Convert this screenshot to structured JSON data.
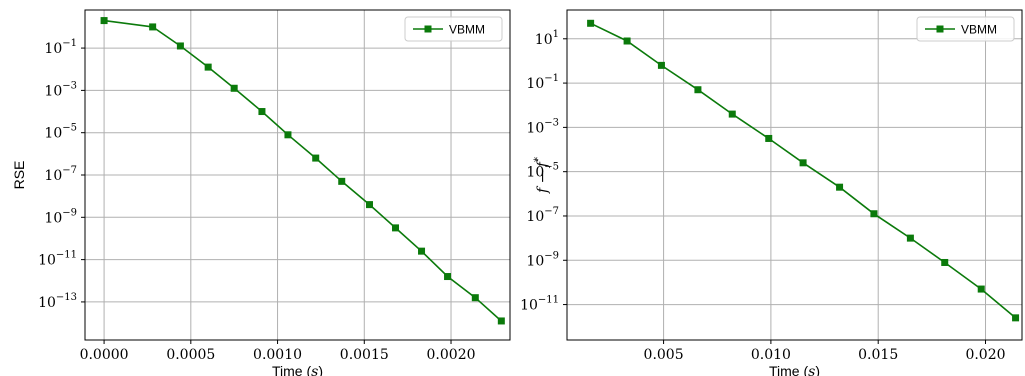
{
  "colors": {
    "series": "#0b7a0b",
    "grid": "#b0b0b0",
    "axis": "#000000"
  },
  "chart_data": [
    {
      "type": "line",
      "scale_y": "log",
      "grid": true,
      "legend_position": "top-right",
      "xlabel": "Time",
      "xlabel_unit": "s",
      "ylabel": "RSE",
      "ylabel_italic": false,
      "xlim": [
        -0.00011,
        0.00234
      ],
      "ylog_range": [
        -14.8,
        0.8
      ],
      "xticks": [
        0.0,
        0.0005,
        0.001,
        0.0015,
        0.002
      ],
      "xtick_labels": [
        "0.0000",
        "0.0005",
        "0.0010",
        "0.0015",
        "0.0020"
      ],
      "ytick_exponents": [
        -1,
        -3,
        -5,
        -7,
        -9,
        -11,
        -13
      ],
      "ytick_base": "10",
      "series": [
        {
          "name": "VBMM",
          "marker": "square",
          "x": [
            0.0,
            0.00028,
            0.00044,
            0.0006,
            0.00075,
            0.00091,
            0.00106,
            0.00122,
            0.00137,
            0.00153,
            0.00168,
            0.00183,
            0.00198,
            0.00214,
            0.00229
          ],
          "y_log10": [
            0.3,
            0.0,
            -0.9,
            -1.9,
            -2.9,
            -4.0,
            -5.1,
            -6.2,
            -7.3,
            -8.4,
            -9.5,
            -10.6,
            -11.8,
            -12.8,
            -13.9
          ]
        }
      ]
    },
    {
      "type": "line",
      "scale_y": "log",
      "grid": true,
      "legend_position": "top-right",
      "xlabel": "Time",
      "xlabel_unit": "s",
      "ylabel": "f − f",
      "ylabel_sup": "*",
      "ylabel_italic": true,
      "xlim": [
        0.0005,
        0.0217
      ],
      "ylog_range": [
        -12.6,
        2.3
      ],
      "xticks": [
        0.005,
        0.01,
        0.015,
        0.02
      ],
      "xtick_labels": [
        "0.005",
        "0.010",
        "0.015",
        "0.020"
      ],
      "ytick_exponents": [
        1,
        -1,
        -3,
        -5,
        -7,
        -9,
        -11
      ],
      "ytick_base": "10",
      "series": [
        {
          "name": "VBMM",
          "marker": "square",
          "x": [
            0.0016,
            0.0033,
            0.0049,
            0.0066,
            0.0082,
            0.0099,
            0.0115,
            0.0132,
            0.0148,
            0.0165,
            0.0181,
            0.0198,
            0.0214
          ],
          "y_log10": [
            1.7,
            0.9,
            -0.2,
            -1.3,
            -2.4,
            -3.5,
            -4.6,
            -5.7,
            -6.9,
            -8.0,
            -9.1,
            -10.3,
            -11.6
          ]
        }
      ]
    }
  ]
}
